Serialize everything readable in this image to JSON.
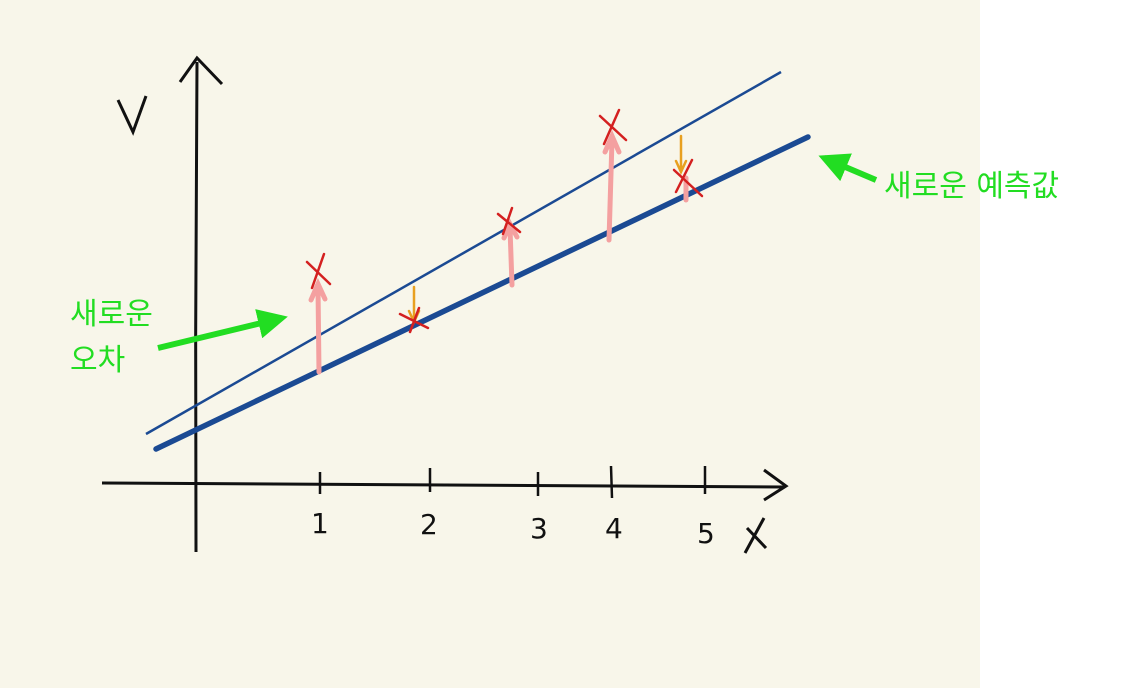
{
  "axes": {
    "x_label": "X",
    "y_label": "Y",
    "x_ticks": [
      "1",
      "2",
      "3",
      "4",
      "5"
    ]
  },
  "annotations": {
    "new_error_line1": "새로운",
    "new_error_line2": "오차",
    "new_prediction": "새로운 예측값"
  },
  "chart_data": {
    "type": "scatter",
    "x": [
      1,
      2,
      3,
      4,
      5
    ],
    "points_label": "data points",
    "lines": [
      "previous prediction line",
      "new prediction line"
    ]
  },
  "colors": {
    "background": "#f8f6ea",
    "axes": "#111111",
    "line": "#1b4a93",
    "points": "#d42020",
    "error_up": "#f4a0a0",
    "error_down": "#e8a020",
    "annotation": "#22dd22"
  }
}
